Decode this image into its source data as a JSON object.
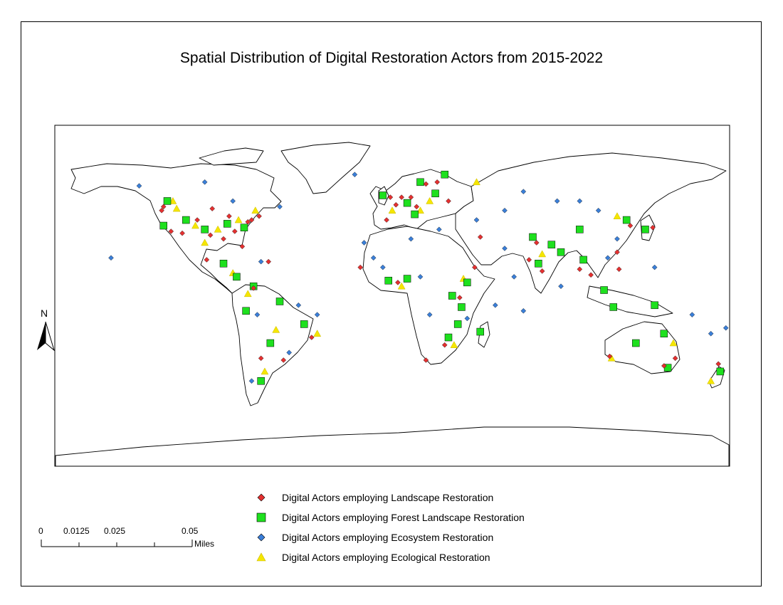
{
  "title": "Spatial Distribution of Digital Restoration Actors from 2015-2022",
  "north_arrow": {
    "letter": "N",
    "icon": "north-arrow-icon"
  },
  "scale_bar": {
    "ticks": [
      "0",
      "0.0125",
      "0.025",
      "0.05"
    ],
    "unit": "Miles"
  },
  "legend": [
    {
      "label": "Digital Actors employing Landscape Restoration",
      "symbol": "red-diamond",
      "color": "#e53030"
    },
    {
      "label": "Digital Actors employing Forest Landscape Restoration",
      "symbol": "green-square",
      "color": "#1ee01e"
    },
    {
      "label": "Digital Actors employing Ecosystem Restoration",
      "symbol": "blue-diamond",
      "color": "#3a7fd9"
    },
    {
      "label": "Digital Actors employing Ecological Restoration",
      "symbol": "yellow-triangle",
      "color": "#f5e600"
    }
  ],
  "map_points": {
    "landscape": [
      [
        -122,
        47
      ],
      [
        -118,
        34
      ],
      [
        -104,
        40
      ],
      [
        -97,
        32
      ],
      [
        -87,
        42
      ],
      [
        -84,
        34
      ],
      [
        -80,
        26
      ],
      [
        -75,
        40
      ],
      [
        -71,
        42
      ],
      [
        -77,
        39
      ],
      [
        -90,
        30
      ],
      [
        -96,
        46
      ],
      [
        -123,
        45
      ],
      [
        -112,
        33
      ],
      [
        -3,
        40
      ],
      [
        2,
        48
      ],
      [
        10,
        52
      ],
      [
        13,
        47
      ],
      [
        -1,
        52
      ],
      [
        5,
        52
      ],
      [
        18,
        59
      ],
      [
        24,
        60
      ],
      [
        30,
        50
      ],
      [
        -74,
        4
      ],
      [
        -43,
        -22
      ],
      [
        -58,
        -34
      ],
      [
        -70,
        -33
      ],
      [
        36,
        -1
      ],
      [
        28,
        -26
      ],
      [
        18,
        -34
      ],
      [
        3,
        7
      ],
      [
        -17,
        15
      ],
      [
        77,
        28
      ],
      [
        73,
        19
      ],
      [
        80,
        13
      ],
      [
        100,
        14
      ],
      [
        106,
        11
      ],
      [
        121,
        14
      ],
      [
        120,
        23
      ],
      [
        139,
        36
      ],
      [
        127,
        37
      ],
      [
        151,
        -33
      ],
      [
        145,
        -37
      ],
      [
        174,
        -36
      ],
      [
        116,
        -32
      ],
      [
        47,
        31
      ],
      [
        44,
        15
      ],
      [
        -99,
        19
      ],
      [
        -66,
        18
      ]
    ],
    "forest": [
      [
        -120,
        50
      ],
      [
        -110,
        40
      ],
      [
        -100,
        35
      ],
      [
        -88,
        38
      ],
      [
        -79,
        36
      ],
      [
        -122,
        37
      ],
      [
        -5,
        53
      ],
      [
        8,
        49
      ],
      [
        15,
        60
      ],
      [
        23,
        54
      ],
      [
        28,
        64
      ],
      [
        12,
        43
      ],
      [
        -74,
        5
      ],
      [
        -60,
        -3
      ],
      [
        -47,
        -15
      ],
      [
        -65,
        -25
      ],
      [
        -70,
        -45
      ],
      [
        -2,
        8
      ],
      [
        8,
        9
      ],
      [
        32,
        0
      ],
      [
        37,
        -6
      ],
      [
        35,
        -15
      ],
      [
        30,
        -22
      ],
      [
        47,
        -19
      ],
      [
        75,
        31
      ],
      [
        85,
        27
      ],
      [
        90,
        23
      ],
      [
        78,
        17
      ],
      [
        102,
        19
      ],
      [
        113,
        3
      ],
      [
        118,
        -6
      ],
      [
        140,
        -5
      ],
      [
        130,
        -25
      ],
      [
        145,
        -20
      ],
      [
        147,
        -38
      ],
      [
        175,
        -40
      ],
      [
        135,
        35
      ],
      [
        125,
        40
      ],
      [
        -90,
        17
      ],
      [
        -83,
        10
      ],
      [
        -78,
        -8
      ],
      [
        100,
        35
      ],
      [
        40,
        7
      ]
    ],
    "ecosystem": [
      [
        -135,
        58
      ],
      [
        -100,
        60
      ],
      [
        -85,
        50
      ],
      [
        -60,
        47
      ],
      [
        -70,
        18
      ],
      [
        -72,
        -10
      ],
      [
        -50,
        -5
      ],
      [
        -40,
        -10
      ],
      [
        -55,
        -30
      ],
      [
        -75,
        -45
      ],
      [
        -15,
        28
      ],
      [
        -10,
        20
      ],
      [
        10,
        30
      ],
      [
        25,
        35
      ],
      [
        45,
        40
      ],
      [
        60,
        45
      ],
      [
        70,
        55
      ],
      [
        88,
        50
      ],
      [
        100,
        50
      ],
      [
        110,
        45
      ],
      [
        120,
        30
      ],
      [
        140,
        15
      ],
      [
        160,
        -10
      ],
      [
        170,
        -20
      ],
      [
        178,
        -17
      ],
      [
        55,
        -5
      ],
      [
        65,
        10
      ],
      [
        90,
        5
      ],
      [
        70,
        -8
      ],
      [
        40,
        -12
      ],
      [
        20,
        -10
      ],
      [
        -20,
        64
      ],
      [
        15,
        10
      ],
      [
        -5,
        15
      ],
      [
        60,
        25
      ],
      [
        115,
        20
      ],
      [
        -150,
        20
      ]
    ],
    "ecological": [
      [
        -115,
        46
      ],
      [
        -105,
        37
      ],
      [
        -93,
        35
      ],
      [
        -82,
        40
      ],
      [
        -73,
        45
      ],
      [
        -117,
        50
      ],
      [
        0,
        45
      ],
      [
        15,
        45
      ],
      [
        20,
        50
      ],
      [
        -77,
        1
      ],
      [
        -62,
        -18
      ],
      [
        -68,
        -40
      ],
      [
        -40,
        -20
      ],
      [
        5,
        5
      ],
      [
        33,
        -26
      ],
      [
        80,
        22
      ],
      [
        120,
        42
      ],
      [
        150,
        -25
      ],
      [
        117,
        -33
      ],
      [
        170,
        -45
      ],
      [
        -85,
        12
      ],
      [
        -100,
        28
      ],
      [
        38,
        9
      ],
      [
        45,
        60
      ]
    ]
  }
}
